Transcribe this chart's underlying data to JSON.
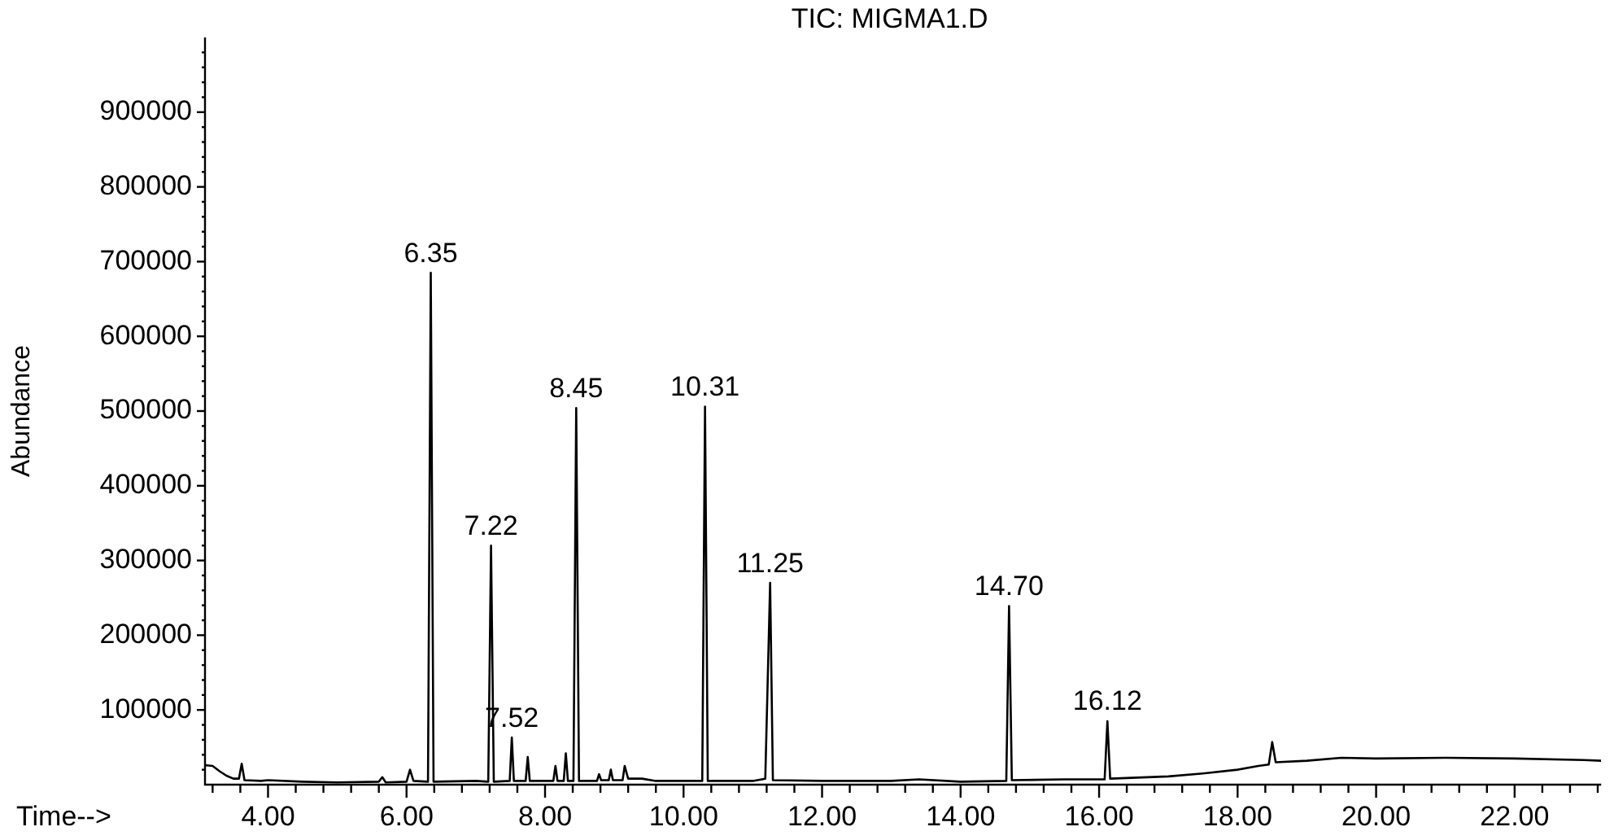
{
  "chart_data": {
    "type": "line",
    "title": "TIC: MIGMA1.D",
    "xlabel": "Time-->",
    "ylabel": "Abundance",
    "xlim": [
      3.09,
      23.25
    ],
    "ylim": [
      0,
      1000000
    ],
    "grid": false,
    "legend": false,
    "marker": "none",
    "line_style": "solid",
    "xticks": [
      {
        "value": 3.2,
        "label": null
      },
      {
        "value": 3.6,
        "label": null
      },
      {
        "value": 4,
        "label": "4.00"
      },
      {
        "value": 4.4,
        "label": null
      },
      {
        "value": 4.8,
        "label": null
      },
      {
        "value": 5.2,
        "label": null
      },
      {
        "value": 5.6,
        "label": null
      },
      {
        "value": 6,
        "label": "6.00"
      },
      {
        "value": 6.4,
        "label": null
      },
      {
        "value": 6.8,
        "label": null
      },
      {
        "value": 7.2,
        "label": null
      },
      {
        "value": 7.6,
        "label": null
      },
      {
        "value": 8,
        "label": "8.00"
      },
      {
        "value": 8.4,
        "label": null
      },
      {
        "value": 8.8,
        "label": null
      },
      {
        "value": 9.2,
        "label": null
      },
      {
        "value": 9.6,
        "label": null
      },
      {
        "value": 10,
        "label": "10.00"
      },
      {
        "value": 10.4,
        "label": null
      },
      {
        "value": 10.8,
        "label": null
      },
      {
        "value": 11.2,
        "label": null
      },
      {
        "value": 11.6,
        "label": null
      },
      {
        "value": 12,
        "label": "12.00"
      },
      {
        "value": 12.4,
        "label": null
      },
      {
        "value": 12.8,
        "label": null
      },
      {
        "value": 13.2,
        "label": null
      },
      {
        "value": 13.6,
        "label": null
      },
      {
        "value": 14,
        "label": "14.00"
      },
      {
        "value": 14.4,
        "label": null
      },
      {
        "value": 14.8,
        "label": null
      },
      {
        "value": 15.2,
        "label": null
      },
      {
        "value": 15.6,
        "label": null
      },
      {
        "value": 16,
        "label": "16.00"
      },
      {
        "value": 16.4,
        "label": null
      },
      {
        "value": 16.8,
        "label": null
      },
      {
        "value": 17.2,
        "label": null
      },
      {
        "value": 17.6,
        "label": null
      },
      {
        "value": 18,
        "label": "18.00"
      },
      {
        "value": 18.4,
        "label": null
      },
      {
        "value": 18.8,
        "label": null
      },
      {
        "value": 19.2,
        "label": null
      },
      {
        "value": 19.6,
        "label": null
      },
      {
        "value": 20,
        "label": "20.00"
      },
      {
        "value": 20.4,
        "label": null
      },
      {
        "value": 20.8,
        "label": null
      },
      {
        "value": 21.2,
        "label": null
      },
      {
        "value": 21.6,
        "label": null
      },
      {
        "value": 22,
        "label": "22.00"
      },
      {
        "value": 22.4,
        "label": null
      },
      {
        "value": 22.8,
        "label": null
      },
      {
        "value": 23.2,
        "label": null
      }
    ],
    "yticks": [
      {
        "value": 20000,
        "label": null
      },
      {
        "value": 40000,
        "label": null
      },
      {
        "value": 60000,
        "label": null
      },
      {
        "value": 80000,
        "label": null
      },
      100000,
      {
        "value": 120000,
        "label": null
      },
      {
        "value": 140000,
        "label": null
      },
      {
        "value": 160000,
        "label": null
      },
      {
        "value": 180000,
        "label": null
      },
      200000,
      {
        "value": 220000,
        "label": null
      },
      {
        "value": 240000,
        "label": null
      },
      {
        "value": 260000,
        "label": null
      },
      {
        "value": 280000,
        "label": null
      },
      300000,
      {
        "value": 320000,
        "label": null
      },
      {
        "value": 340000,
        "label": null
      },
      {
        "value": 360000,
        "label": null
      },
      {
        "value": 380000,
        "label": null
      },
      400000,
      {
        "value": 420000,
        "label": null
      },
      {
        "value": 440000,
        "label": null
      },
      {
        "value": 460000,
        "label": null
      },
      {
        "value": 480000,
        "label": null
      },
      500000,
      {
        "value": 520000,
        "label": null
      },
      {
        "value": 540000,
        "label": null
      },
      {
        "value": 560000,
        "label": null
      },
      {
        "value": 580000,
        "label": null
      },
      600000,
      {
        "value": 620000,
        "label": null
      },
      {
        "value": 640000,
        "label": null
      },
      {
        "value": 660000,
        "label": null
      },
      {
        "value": 680000,
        "label": null
      },
      700000,
      {
        "value": 720000,
        "label": null
      },
      {
        "value": 740000,
        "label": null
      },
      {
        "value": 760000,
        "label": null
      },
      {
        "value": 780000,
        "label": null
      },
      800000,
      {
        "value": 820000,
        "label": null
      },
      {
        "value": 840000,
        "label": null
      },
      {
        "value": 860000,
        "label": null
      },
      {
        "value": 880000,
        "label": null
      },
      900000,
      {
        "value": 920000,
        "label": null
      },
      {
        "value": 940000,
        "label": null
      },
      {
        "value": 960000,
        "label": null
      },
      {
        "value": 980000,
        "label": null
      }
    ],
    "series": [
      {
        "color": "#000000",
        "x": [
          3.1,
          3.2,
          3.3,
          3.4,
          3.5,
          3.58,
          3.62,
          3.66,
          3.9,
          4.0,
          4.5,
          5.0,
          5.6,
          5.65,
          5.7,
          6.0,
          6.05,
          6.1,
          6.31,
          6.35,
          6.39,
          7.0,
          7.18,
          7.22,
          7.26,
          7.49,
          7.52,
          7.55,
          7.72,
          7.75,
          7.78,
          8.12,
          8.15,
          8.18,
          8.27,
          8.3,
          8.33,
          8.41,
          8.45,
          8.49,
          8.75,
          8.78,
          8.81,
          8.92,
          8.95,
          8.98,
          9.12,
          9.15,
          9.2,
          9.4,
          9.6,
          10.0,
          10.27,
          10.31,
          10.35,
          11.0,
          11.18,
          11.25,
          11.29,
          12.0,
          13.0,
          13.4,
          14.0,
          14.66,
          14.7,
          14.74,
          15.5,
          16.08,
          16.12,
          16.16,
          17.0,
          17.5,
          18.0,
          18.3,
          18.45,
          18.5,
          18.55,
          19.0,
          19.5,
          20.0,
          21.0,
          22.0,
          23.0,
          23.25
        ],
        "values": [
          26000,
          25000,
          18000,
          12000,
          8000,
          8000,
          28000,
          6000,
          5000,
          6000,
          4000,
          3000,
          4000,
          10000,
          3000,
          4000,
          20000,
          5000,
          4000,
          685000,
          4000,
          5000,
          4000,
          320000,
          4000,
          5000,
          63000,
          5000,
          5000,
          37000,
          5000,
          5000,
          25000,
          5000,
          5000,
          42000,
          5000,
          5000,
          504000,
          5000,
          5000,
          14000,
          6000,
          6000,
          20000,
          6000,
          6000,
          25000,
          8000,
          8000,
          5000,
          5000,
          5000,
          506000,
          5000,
          5000,
          8000,
          270000,
          6000,
          5000,
          5000,
          7000,
          4000,
          5000,
          239000,
          6000,
          7000,
          7000,
          85000,
          8000,
          11000,
          15000,
          20000,
          25000,
          27000,
          57000,
          30000,
          32000,
          36000,
          35000,
          36000,
          35000,
          33000,
          32000
        ]
      }
    ],
    "annotations": [
      {
        "text": "6.35",
        "x": 6.35,
        "y": 685000
      },
      {
        "text": "7.22",
        "x": 7.22,
        "y": 320000
      },
      {
        "text": "7.52",
        "x": 7.52,
        "y": 63000
      },
      {
        "text": "8.45",
        "x": 8.45,
        "y": 504000
      },
      {
        "text": "10.31",
        "x": 10.31,
        "y": 506000
      },
      {
        "text": "11.25",
        "x": 11.25,
        "y": 270000
      },
      {
        "text": "14.70",
        "x": 14.7,
        "y": 239000
      },
      {
        "text": "16.12",
        "x": 16.12,
        "y": 85000
      }
    ]
  }
}
